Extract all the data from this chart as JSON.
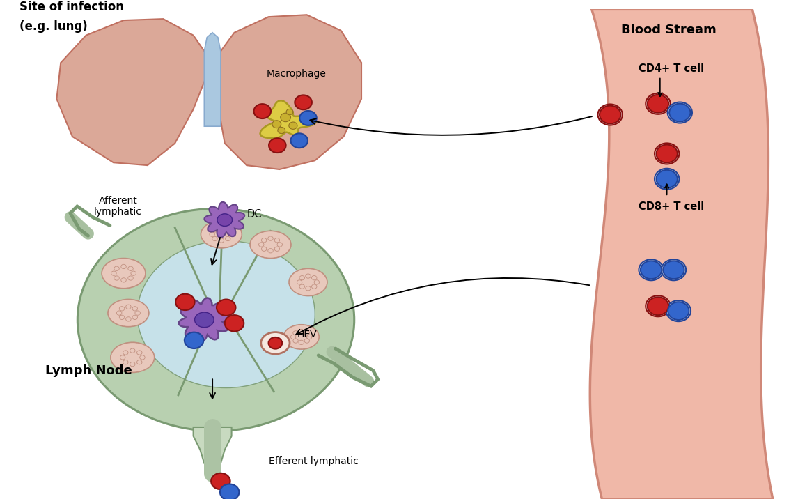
{
  "bg_color": "#ffffff",
  "title_line1": "Site of infection",
  "title_line2": "(e.g. lung)",
  "blood_stream_label": "Blood Stream",
  "lymph_node_label": "Lymph Node",
  "macrophage_label": "Macrophage",
  "dc_label": "DC",
  "hev_label": "HEV",
  "afferent_label": "Afferent\nlymphatic",
  "efferent_label": "Efferent lymphatic",
  "cd4_label": "CD4+ T cell",
  "cd8_label": "CD8+ T cell",
  "lung_color": "#dba898",
  "lung_outline": "#c07060",
  "trachea_color": "#aac8e0",
  "blood_stream_fill": "#f0b8a8",
  "blood_stream_wall": "#d08878",
  "lymph_node_outer_color": "#b8d0b0",
  "lymph_node_outer_outline": "#7a9a72",
  "lymph_node_medulla_color": "#c8e4f0",
  "lymph_node_cortex_color": "#e8c8bc",
  "lymph_node_cortex_outline": "#c09080",
  "lymph_stalk_color": "#c8dac0",
  "red_cell_color": "#cc2222",
  "red_cell_outline": "#881111",
  "blue_cell_color": "#3366cc",
  "blue_cell_outline": "#224499",
  "dc_cell_color": "#9966bb",
  "dc_cell_outline": "#664488",
  "macrophage_color": "#ddcc44",
  "macrophage_outline": "#aa9922",
  "arrow_color": "#111111"
}
